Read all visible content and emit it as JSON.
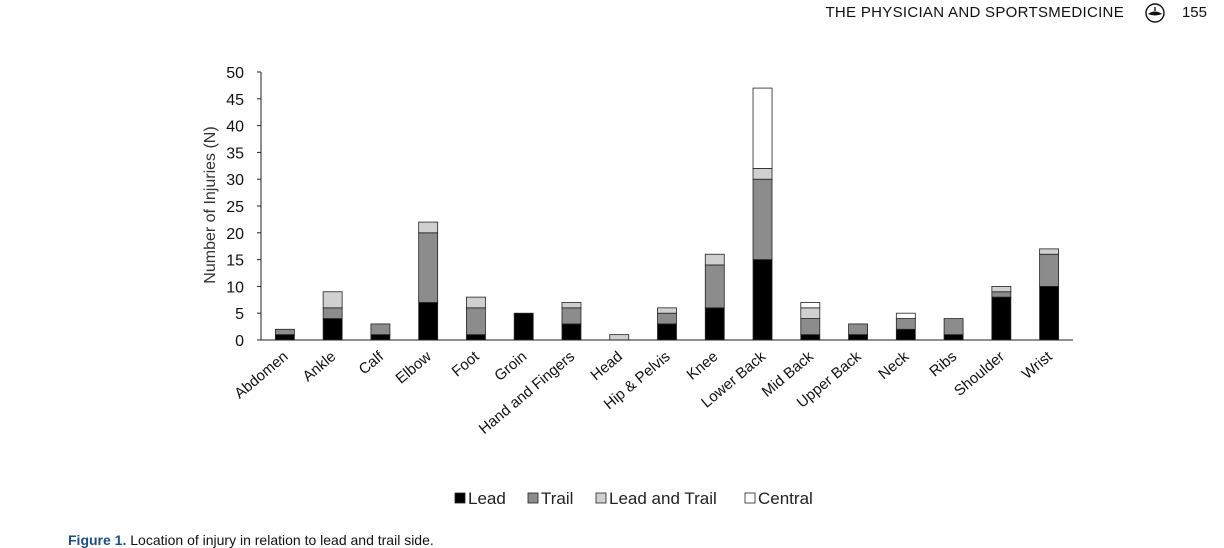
{
  "header": {
    "journal": "THE PHYSICIAN AND SPORTSMEDICINE",
    "page": "155"
  },
  "caption": {
    "label": "Figure 1.",
    "text": "Location of injury in relation to lead and trail side."
  },
  "chart_data": {
    "type": "bar",
    "stacked": true,
    "ylabel": "Number of Injuries (N)",
    "xlabel": "",
    "ylim": [
      0,
      50
    ],
    "yticks": [
      0,
      5,
      10,
      15,
      20,
      25,
      30,
      35,
      40,
      45,
      50
    ],
    "grid": false,
    "legend_position": "bottom",
    "categories": [
      "Abdomen",
      "Ankle",
      "Calf",
      "Elbow",
      "Foot",
      "Groin",
      "Hand and Fingers",
      "Head",
      "Hip & Pelvis",
      "Knee",
      "Lower Back",
      "Mid Back",
      "Upper Back",
      "Neck",
      "Ribs",
      "Shoulder",
      "Wrist"
    ],
    "series": [
      {
        "name": "Lead",
        "color": "#000000",
        "values": [
          1,
          4,
          1,
          7,
          1,
          5,
          3,
          0,
          3,
          6,
          15,
          1,
          1,
          2,
          1,
          8,
          10
        ]
      },
      {
        "name": "Trail",
        "color": "#8c8c8c",
        "values": [
          1,
          2,
          2,
          13,
          5,
          0,
          3,
          0,
          2,
          8,
          15,
          3,
          2,
          2,
          3,
          1,
          6
        ]
      },
      {
        "name": "Lead and Trail",
        "color": "#d0d0d0",
        "values": [
          0,
          3,
          0,
          2,
          2,
          0,
          1,
          1,
          1,
          2,
          2,
          2,
          0,
          0,
          0,
          1,
          1
        ]
      },
      {
        "name": "Central",
        "color": "#ffffff",
        "values": [
          0,
          0,
          0,
          0,
          0,
          0,
          0,
          0,
          0,
          0,
          15,
          1,
          0,
          1,
          0,
          0,
          0
        ]
      }
    ]
  }
}
